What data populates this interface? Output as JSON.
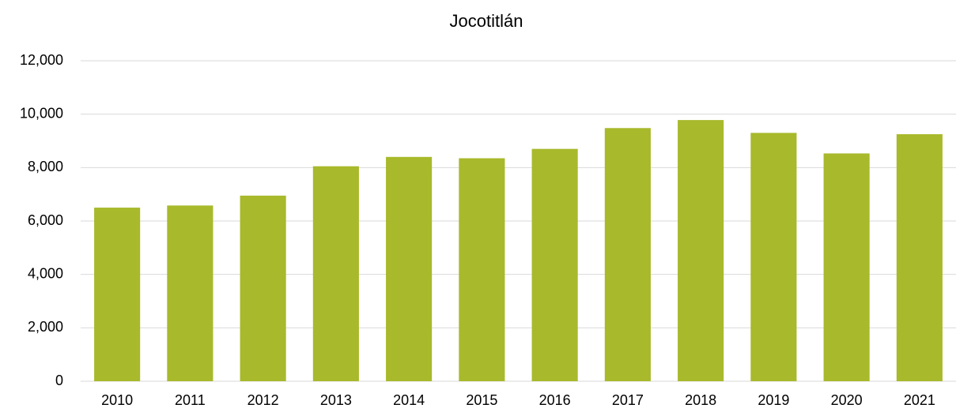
{
  "chart_data": {
    "type": "bar",
    "title": "Jocotitlán",
    "categories": [
      "2010",
      "2011",
      "2012",
      "2013",
      "2014",
      "2015",
      "2016",
      "2017",
      "2018",
      "2019",
      "2020",
      "2021"
    ],
    "values": [
      6500,
      6580,
      6950,
      8050,
      8400,
      8350,
      8700,
      9480,
      9780,
      9300,
      8530,
      9250
    ],
    "color": "#a8b92b",
    "ylim": [
      0,
      12000
    ],
    "yticks": [
      0,
      {
        "value": 2000,
        "label": "2,000"
      },
      {
        "value": 4000,
        "label": "4,000"
      },
      {
        "value": 6000,
        "label": "6,000"
      },
      {
        "value": 8000,
        "label": "8,000"
      },
      {
        "value": 10000,
        "label": "10,000"
      },
      {
        "value": 12000,
        "label": "12,000"
      }
    ],
    "grid": true
  }
}
